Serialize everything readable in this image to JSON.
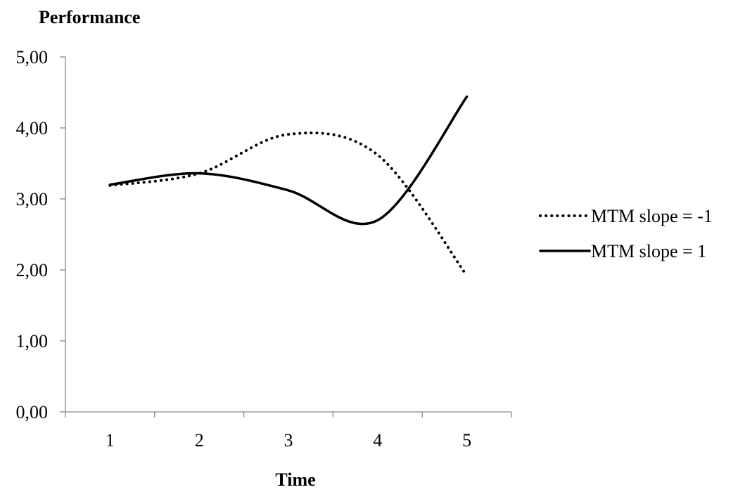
{
  "chart_data": {
    "type": "line",
    "title": "",
    "ylabel": "Performance",
    "xlabel": "Time",
    "categories": [
      "1",
      "2",
      "3",
      "4",
      "5"
    ],
    "x": [
      1,
      2,
      3,
      4,
      5
    ],
    "ylim": [
      0,
      5
    ],
    "yticks": [
      "0,00",
      "1,00",
      "2,00",
      "3,00",
      "4,00",
      "5,00"
    ],
    "ytick_values": [
      0,
      1,
      2,
      3,
      4,
      5
    ],
    "grid": false,
    "smooth": true,
    "legend_position": "right",
    "series": [
      {
        "name": "MTM slope = -1",
        "style": "dotted",
        "color": "#000000",
        "values": [
          3.19,
          3.36,
          3.91,
          3.62,
          1.92
        ]
      },
      {
        "name": "MTM slope = 1",
        "style": "solid",
        "color": "#000000",
        "values": [
          3.2,
          3.36,
          3.12,
          2.7,
          4.44
        ]
      }
    ]
  }
}
